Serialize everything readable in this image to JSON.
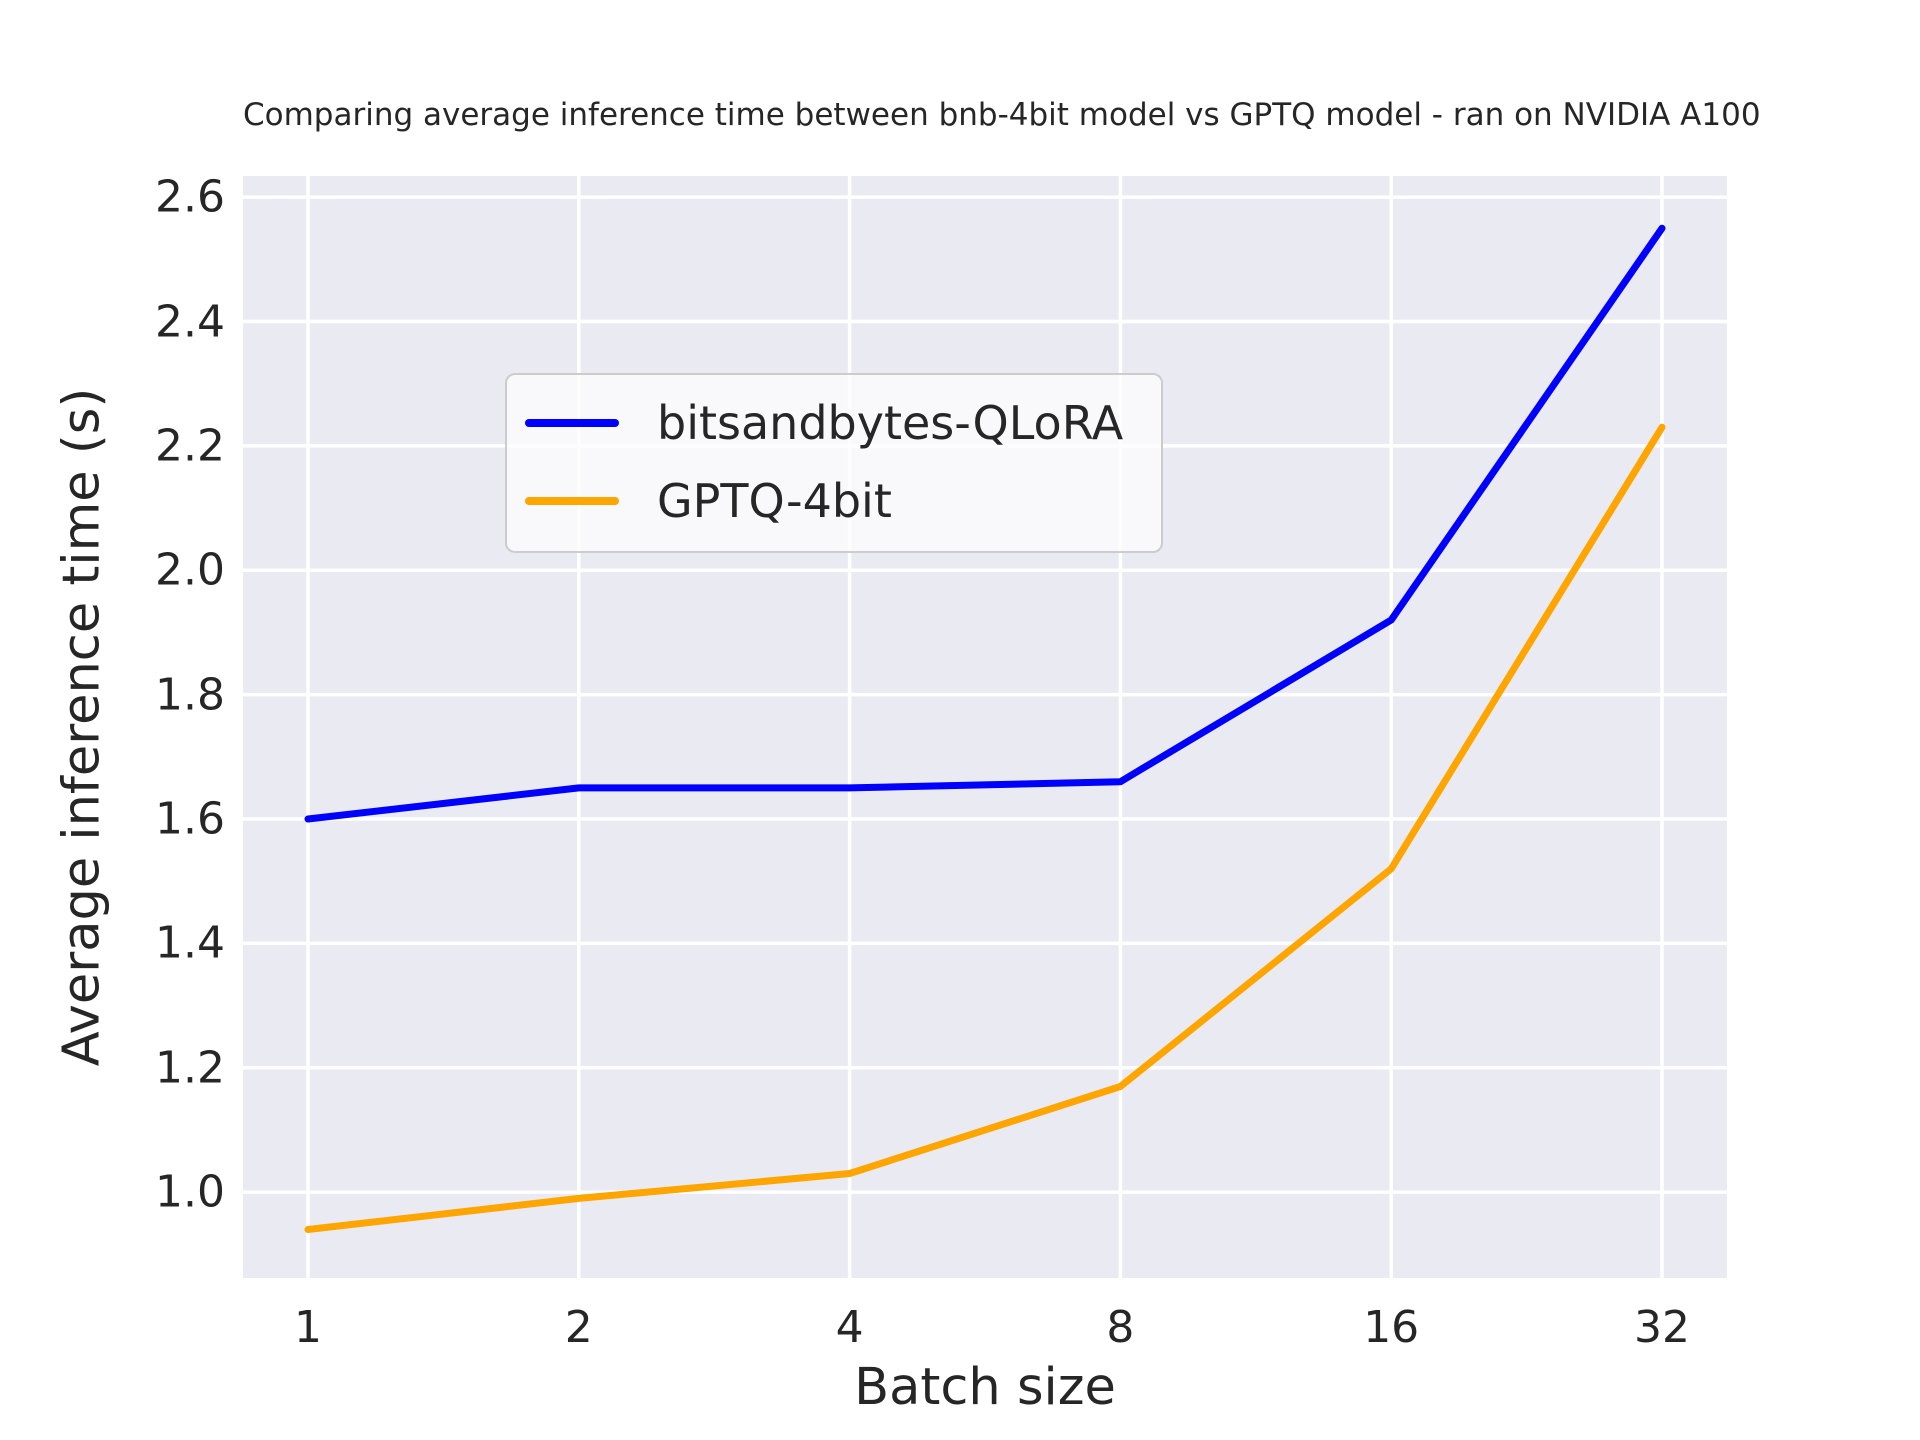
{
  "title": "Comparing average inference time between bnb-4bit model vs GPTQ model - ran on NVIDIA A100",
  "chart_data": {
    "type": "line",
    "title": "Comparing average inference time between bnb-4bit model vs GPTQ model - ran on NVIDIA A100",
    "xlabel": "Batch size",
    "ylabel": "Average inference time (s)",
    "x": [
      1,
      2,
      4,
      8,
      16,
      32
    ],
    "x_scale": "log2",
    "x_tick_labels": [
      "1",
      "2",
      "4",
      "8",
      "16",
      "32"
    ],
    "y_ticks": [
      1.0,
      1.2,
      1.4,
      1.6,
      1.8,
      2.0,
      2.2,
      2.4,
      2.6
    ],
    "y_tick_labels": [
      "1.0",
      "1.2",
      "1.4",
      "1.6",
      "1.8",
      "2.0",
      "2.2",
      "2.4",
      "2.6"
    ],
    "series": [
      {
        "name": "bitsandbytes-QLoRA",
        "color": "#0000ff",
        "values": [
          1.6,
          1.65,
          1.65,
          1.66,
          1.92,
          2.55
        ]
      },
      {
        "name": "GPTQ-4bit",
        "color": "#ffa500",
        "values": [
          0.94,
          0.99,
          1.03,
          1.17,
          1.52,
          2.23
        ]
      }
    ],
    "legend_position": "upper left",
    "grid": true,
    "layout": {
      "x_log_min": -0.24,
      "x_log_max": 5.24,
      "y_min": 0.862,
      "y_max": 2.634
    },
    "colors": {
      "axes_background": "#eaeaf2",
      "gridline": "#ffffff",
      "text": "#262626"
    }
  }
}
